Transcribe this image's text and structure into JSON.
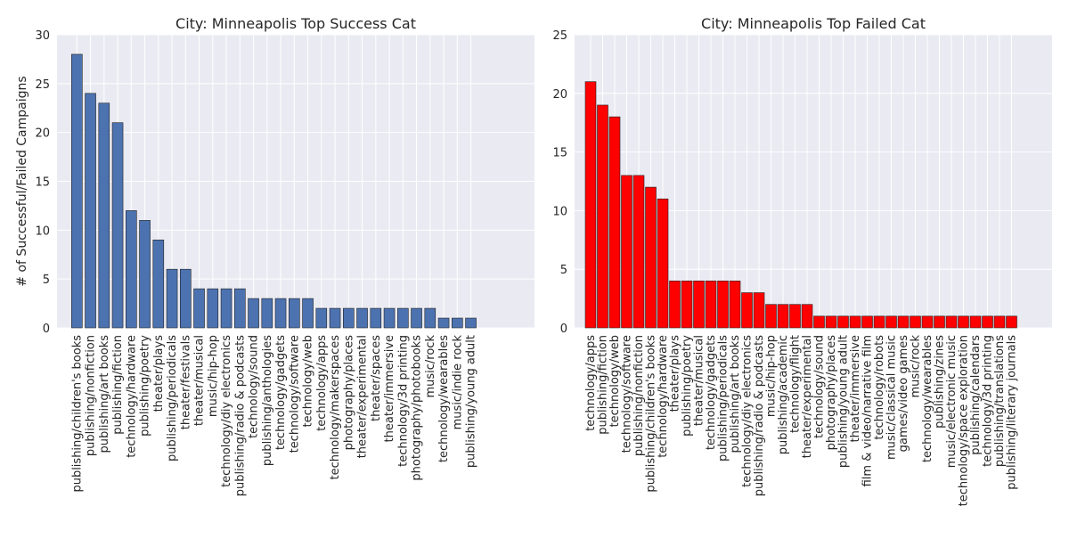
{
  "chart_data": [
    {
      "type": "bar",
      "title": "City: Minneapolis Top Success Cat",
      "xlabel": "",
      "ylabel": "# of Successful/Failed Campaigns",
      "ylim": [
        0,
        30
      ],
      "yticks": [
        0,
        5,
        10,
        15,
        20,
        25,
        30
      ],
      "grid": true,
      "bar_color": "#4c72b0",
      "categories": [
        "publishing/children's books",
        "publishing/nonfiction",
        "publishing/art books",
        "publishing/fiction",
        "technology/hardware",
        "publishing/poetry",
        "theater/plays",
        "publishing/periodicals",
        "theater/festivals",
        "theater/musical",
        "music/hip-hop",
        "technology/diy electronics",
        "publishing/radio & podcasts",
        "technology/sound",
        "publishing/anthologies",
        "technology/gadgets",
        "technology/software",
        "technology/web",
        "technology/apps",
        "technology/makerspaces",
        "photography/places",
        "theater/experimental",
        "theater/spaces",
        "theater/immersive",
        "technology/3d printing",
        "photography/photobooks",
        "music/rock",
        "technology/wearables",
        "music/indie rock",
        "publishing/young adult"
      ],
      "values": [
        28,
        24,
        23,
        21,
        12,
        11,
        9,
        6,
        6,
        4,
        4,
        4,
        4,
        3,
        3,
        3,
        3,
        3,
        2,
        2,
        2,
        2,
        2,
        2,
        2,
        2,
        2,
        1,
        1,
        1
      ]
    },
    {
      "type": "bar",
      "title": "City: Minneapolis Top Failed Cat",
      "xlabel": "",
      "ylabel": "",
      "ylim": [
        0,
        25
      ],
      "yticks": [
        0,
        5,
        10,
        15,
        20,
        25
      ],
      "grid": true,
      "bar_color": "#ff0000",
      "categories": [
        "technology/apps",
        "publishing/fiction",
        "technology/web",
        "technology/software",
        "publishing/nonfiction",
        "publishing/children's books",
        "technology/hardware",
        "theater/plays",
        "publishing/poetry",
        "theater/musical",
        "technology/gadgets",
        "publishing/periodicals",
        "publishing/art books",
        "technology/diy electronics",
        "publishing/radio & podcasts",
        "music/hip-hop",
        "publishing/academic",
        "technology/flight",
        "theater/experimental",
        "technology/sound",
        "photography/places",
        "publishing/young adult",
        "theater/immersive",
        "film & video/narrative film",
        "technology/robots",
        "music/classical music",
        "games/video games",
        "music/rock",
        "technology/wearables",
        "publishing/zines",
        "music/electronic music",
        "technology/space exploration",
        "publishing/calendars",
        "technology/3d printing",
        "publishing/translations",
        "publishing/literary journals"
      ],
      "values": [
        21,
        19,
        18,
        13,
        13,
        12,
        11,
        4,
        4,
        4,
        4,
        4,
        4,
        3,
        3,
        2,
        2,
        2,
        2,
        1,
        1,
        1,
        1,
        1,
        1,
        1,
        1,
        1,
        1,
        1,
        1,
        1,
        1,
        1,
        1,
        1
      ]
    }
  ]
}
